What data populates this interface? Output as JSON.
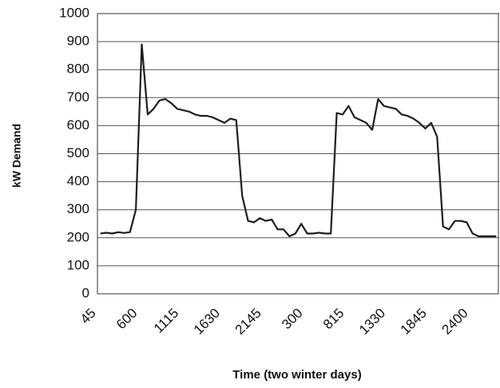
{
  "chart_data": {
    "type": "line",
    "xlabel": "Time (two winter days)",
    "ylabel": "kW Demand",
    "categories": [
      "45",
      null,
      null,
      null,
      null,
      null,
      null,
      "600",
      null,
      null,
      null,
      null,
      null,
      null,
      "1115",
      null,
      null,
      null,
      null,
      null,
      null,
      "1630",
      null,
      null,
      null,
      null,
      null,
      null,
      "2145",
      null,
      null,
      null,
      null,
      null,
      null,
      "300",
      null,
      null,
      null,
      null,
      null,
      null,
      "815",
      null,
      null,
      null,
      null,
      null,
      null,
      "1330",
      null,
      null,
      null,
      null,
      null,
      null,
      "1845",
      null,
      null,
      null,
      null,
      null,
      null,
      "2400",
      null,
      null,
      null,
      null
    ],
    "series": [
      {
        "color": "#1e1e1e",
        "values": [
          215,
          218,
          215,
          220,
          217,
          220,
          300,
          890,
          640,
          660,
          690,
          695,
          680,
          660,
          655,
          650,
          640,
          635,
          635,
          630,
          620,
          610,
          625,
          620,
          350,
          260,
          255,
          270,
          260,
          265,
          230,
          230,
          205,
          215,
          250,
          215,
          215,
          218,
          215,
          215,
          645,
          640,
          670,
          630,
          620,
          610,
          585,
          695,
          670,
          665,
          660,
          640,
          635,
          625,
          610,
          590,
          610,
          560,
          240,
          230,
          260,
          260,
          255,
          215,
          205,
          205,
          205,
          205
        ]
      }
    ],
    "ylim": [
      0,
      1000
    ],
    "yticks": [
      0,
      100,
      200,
      300,
      400,
      500,
      600,
      700,
      800,
      900,
      1000
    ],
    "grid": true
  }
}
